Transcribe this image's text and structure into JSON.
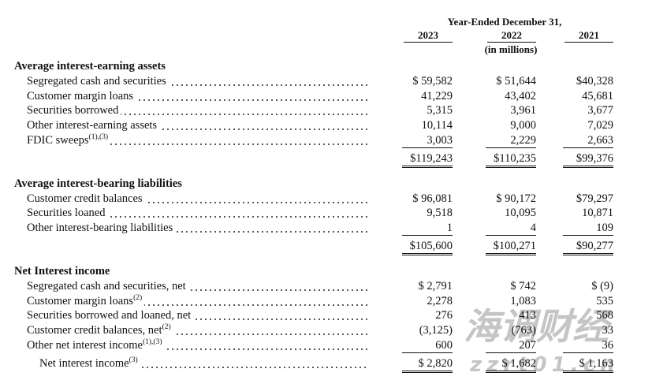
{
  "header": {
    "period": "Year-Ended December 31,",
    "years": [
      "2023",
      "2022",
      "2021"
    ],
    "unit": "(in millions)"
  },
  "sections": [
    {
      "title": "Average interest-earning assets",
      "rows": [
        {
          "label": "Segregated cash and securities",
          "values": [
            "$ 59,582",
            "$ 51,644",
            "$40,328"
          ]
        },
        {
          "label": "Customer margin loans",
          "values": [
            "41,229",
            "43,402",
            "45,681"
          ]
        },
        {
          "label": "Securities borrowed",
          "values": [
            "5,315",
            "3,961",
            "3,677"
          ]
        },
        {
          "label": "Other interest-earning assets",
          "values": [
            "10,114",
            "9,000",
            "7,029"
          ]
        },
        {
          "label": "FDIC sweeps",
          "note": "(1),(3)",
          "values": [
            "3,003",
            "2,229",
            "2,663"
          ]
        }
      ],
      "total": {
        "values": [
          "$119,243",
          "$110,235",
          "$99,376"
        ]
      }
    },
    {
      "title": "Average interest-bearing liabilities",
      "rows": [
        {
          "label": "Customer credit balances",
          "values": [
            "$ 96,081",
            "$ 90,172",
            "$79,297"
          ]
        },
        {
          "label": "Securities loaned",
          "values": [
            "9,518",
            "10,095",
            "10,871"
          ]
        },
        {
          "label": "Other interest-bearing liabilities",
          "values": [
            "1",
            "4",
            "109"
          ]
        }
      ],
      "total": {
        "values": [
          "$105,600",
          "$100,271",
          "$90,277"
        ]
      }
    },
    {
      "title": "Net Interest income",
      "rows": [
        {
          "label": "Segregated cash and securities, net",
          "values": [
            "$ 2,791",
            "$ 742",
            "$ (9)"
          ]
        },
        {
          "label": "Customer margin loans",
          "note": "(2)",
          "values": [
            "2,278",
            "1,083",
            "535"
          ]
        },
        {
          "label": "Securities borrowed and loaned, net",
          "values": [
            "276",
            "413",
            "568"
          ]
        },
        {
          "label": "Customer credit balances, net",
          "note": "(2)",
          "values": [
            "(3,125)",
            "(763)",
            "33"
          ]
        },
        {
          "label": "Other net interest income",
          "note": "(1),(3)",
          "values": [
            "600",
            "207",
            "36"
          ]
        }
      ],
      "total": {
        "label": "Net interest income",
        "note": "(3)",
        "values": [
          "$ 2,820",
          "$ 1,682",
          "$ 1,163"
        ]
      }
    }
  ],
  "watermark": {
    "name": "海调财经",
    "url": "zzrt01.cn"
  }
}
